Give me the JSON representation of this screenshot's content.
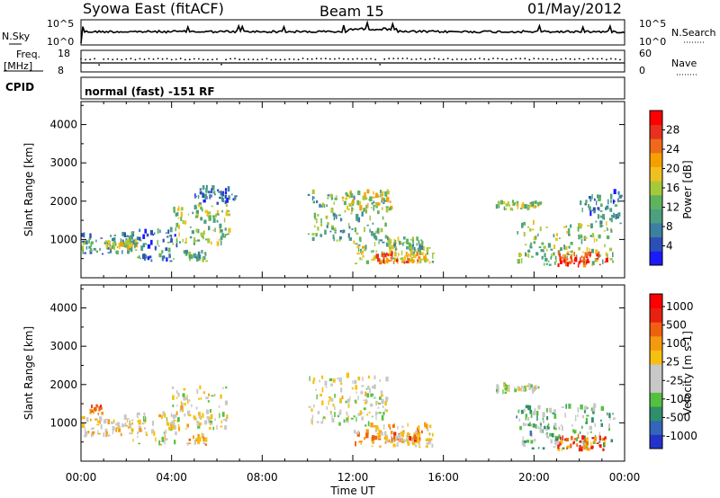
{
  "header": {
    "station": "Syowa East (fitACF)",
    "beam": "Beam 15",
    "date": "01/May/2012",
    "cpid_label": "CPID",
    "cpid_text": "normal (fast) -151 RF"
  },
  "strips": {
    "nsky_label": "N.Sky",
    "nsky_top": "10^5",
    "nsky_bottom": "10^0",
    "nsearch_label": "N.Search",
    "freq_label_1": "Freq.",
    "freq_label_2": "[MHz]",
    "freq_top": "18",
    "freq_bottom": "8",
    "nave_label": "Nave",
    "nave_top": "60",
    "nave_bottom": "0"
  },
  "chart_data": [
    {
      "type": "heatmap",
      "name": "power",
      "ylabel": "Slant Range [km]",
      "yticks": [
        "1000",
        "2000",
        "3000",
        "4000"
      ],
      "ylim": [
        0,
        4600
      ],
      "colorbar": {
        "label": "Power [dB]",
        "ticks": [
          "4",
          "8",
          "12",
          "16",
          "20",
          "24",
          "28"
        ],
        "colors": [
          "#1a1aff",
          "#2b4fb8",
          "#3d7fa0",
          "#4aa081",
          "#5fb35f",
          "#a6c93c",
          "#f0c020",
          "#f5a000",
          "#ee6a1a",
          "#e83020",
          "#ff0000"
        ]
      },
      "blobs": [
        {
          "t": [
            0.0,
            2.3
          ],
          "r": [
            600,
            1100
          ],
          "level": 0.3
        },
        {
          "t": [
            1.0,
            2.4
          ],
          "r": [
            700,
            950
          ],
          "level": 0.55
        },
        {
          "t": [
            2.2,
            4.3
          ],
          "r": [
            400,
            1200
          ],
          "level": 0.25
        },
        {
          "t": [
            4.0,
            6.5
          ],
          "r": [
            800,
            1900
          ],
          "level": 0.45
        },
        {
          "t": [
            4.5,
            5.5
          ],
          "r": [
            400,
            650
          ],
          "level": 0.35
        },
        {
          "t": [
            5.0,
            6.8
          ],
          "r": [
            1900,
            2300
          ],
          "level": 0.2
        },
        {
          "t": [
            10.0,
            13.5
          ],
          "r": [
            900,
            2200
          ],
          "level": 0.35
        },
        {
          "t": [
            11.5,
            13.7
          ],
          "r": [
            1700,
            2200
          ],
          "level": 0.55
        },
        {
          "t": [
            12.0,
            15.5
          ],
          "r": [
            350,
            900
          ],
          "level": 0.5
        },
        {
          "t": [
            13.5,
            15.0
          ],
          "r": [
            700,
            1000
          ],
          "level": 0.4
        },
        {
          "t": [
            13.0,
            15.0
          ],
          "r": [
            350,
            600
          ],
          "level": 0.75
        },
        {
          "t": [
            18.3,
            20.3
          ],
          "r": [
            1750,
            1950
          ],
          "level": 0.45
        },
        {
          "t": [
            19.2,
            23.5
          ],
          "r": [
            300,
            1400
          ],
          "level": 0.45
        },
        {
          "t": [
            21.0,
            23.2
          ],
          "r": [
            250,
            600
          ],
          "level": 0.85
        },
        {
          "t": [
            22.0,
            23.8
          ],
          "r": [
            1400,
            2200
          ],
          "level": 0.25
        }
      ]
    },
    {
      "type": "heatmap",
      "name": "velocity",
      "ylabel": "Slant Range [km]",
      "yticks": [
        "1000",
        "2000",
        "3000",
        "4000"
      ],
      "ylim": [
        0,
        4600
      ],
      "colorbar": {
        "label": "Velocity [m s-1]",
        "ticks": [
          "1000",
          "500",
          "100",
          "25",
          "-25",
          "-100",
          "-500",
          "-1000"
        ],
        "colors": [
          "#2233cc",
          "#3366bb",
          "#2f8f6a",
          "#55c040",
          "#c8c8c8",
          "#c8c8c8",
          "#f5c010",
          "#f59a10",
          "#f06010",
          "#e82010",
          "#ff0000"
        ]
      },
      "blobs": [
        {
          "t": [
            0.0,
            2.3
          ],
          "r": [
            600,
            1100
          ],
          "level": 0.55
        },
        {
          "t": [
            0.3,
            0.9
          ],
          "r": [
            1200,
            1400
          ],
          "level": 0.78
        },
        {
          "t": [
            2.2,
            4.3
          ],
          "r": [
            400,
            1200
          ],
          "level": 0.5
        },
        {
          "t": [
            4.0,
            6.5
          ],
          "r": [
            800,
            1900
          ],
          "level": 0.47
        },
        {
          "t": [
            4.5,
            5.5
          ],
          "r": [
            400,
            650
          ],
          "level": 0.65
        },
        {
          "t": [
            10.0,
            13.5
          ],
          "r": [
            900,
            2200
          ],
          "level": 0.47
        },
        {
          "t": [
            12.0,
            15.5
          ],
          "r": [
            350,
            900
          ],
          "level": 0.62
        },
        {
          "t": [
            13.0,
            15.0
          ],
          "r": [
            450,
            700
          ],
          "level": 0.67
        },
        {
          "t": [
            18.3,
            20.3
          ],
          "r": [
            1750,
            1950
          ],
          "level": 0.47
        },
        {
          "t": [
            19.2,
            23.5
          ],
          "r": [
            300,
            1400
          ],
          "level": 0.35
        },
        {
          "t": [
            21.0,
            23.2
          ],
          "r": [
            250,
            600
          ],
          "level": 0.75
        }
      ]
    }
  ],
  "xaxis": {
    "label": "Time UT",
    "ticks": [
      "00:00",
      "04:00",
      "08:00",
      "12:00",
      "16:00",
      "20:00",
      "00:00"
    ],
    "hours": [
      0,
      4,
      8,
      12,
      16,
      20,
      24
    ]
  }
}
